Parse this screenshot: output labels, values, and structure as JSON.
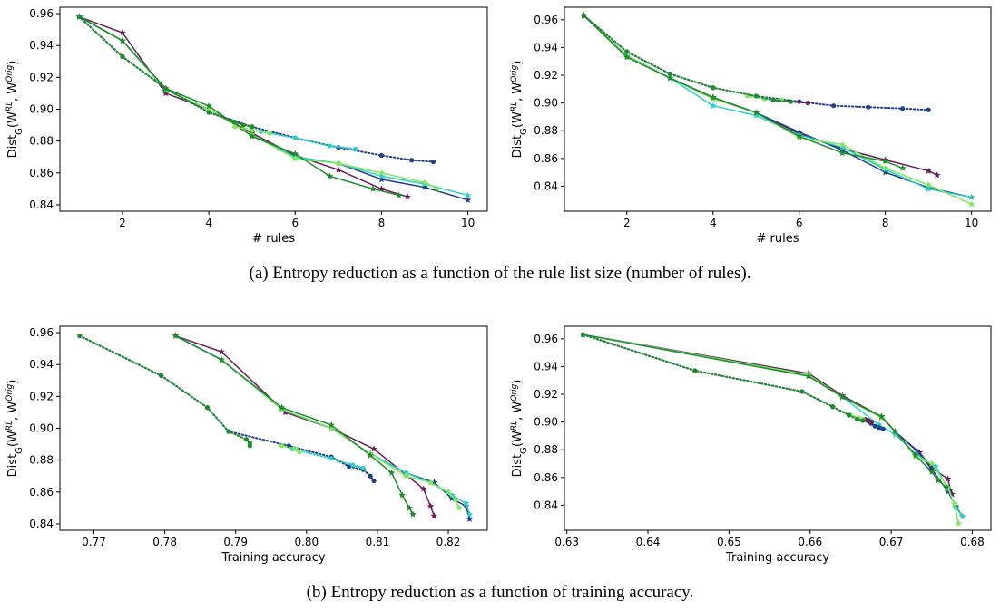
{
  "captions": {
    "a": "(a) Entropy reduction as a function of the rule list size (number of rules).",
    "b": "(b) Entropy reduction as a function of training accuracy."
  },
  "chart_data": [
    {
      "type": "line",
      "xlabel": "# rules",
      "ylabel": "Dist_G(W^RL, W^Orig)",
      "xlim": [
        0.55,
        10.45
      ],
      "ylim": [
        0.836,
        0.964
      ],
      "xticks": [
        2,
        4,
        6,
        8,
        10
      ],
      "yticks": [
        0.84,
        0.86,
        0.88,
        0.9,
        0.92,
        0.94,
        0.96
      ],
      "series": [
        {
          "color": "#6b1f57",
          "style": "solid",
          "marker": "star",
          "x": [
            1,
            2,
            3,
            4,
            5,
            6,
            7,
            8,
            8.6
          ],
          "y": [
            0.958,
            0.948,
            0.91,
            0.9,
            0.885,
            0.871,
            0.862,
            0.85,
            0.845
          ]
        },
        {
          "color": "#1f3f8e",
          "style": "solid",
          "marker": "star",
          "x": [
            1,
            2,
            3,
            4,
            5,
            6,
            7,
            8,
            9,
            10
          ],
          "y": [
            0.958,
            0.943,
            0.912,
            0.9,
            0.884,
            0.87,
            0.866,
            0.856,
            0.851,
            0.843
          ]
        },
        {
          "color": "#2bd0c4",
          "style": "solid",
          "marker": "star",
          "x": [
            1,
            2,
            3,
            4,
            5,
            6,
            7,
            8,
            9,
            10
          ],
          "y": [
            0.958,
            0.943,
            0.912,
            0.9,
            0.884,
            0.87,
            0.866,
            0.858,
            0.853,
            0.846
          ]
        },
        {
          "color": "#7ee85e",
          "style": "solid",
          "marker": "star",
          "x": [
            1,
            2,
            3,
            4,
            5,
            6,
            7,
            8,
            9,
            9.3
          ],
          "y": [
            0.958,
            0.943,
            0.912,
            0.9,
            0.884,
            0.869,
            0.866,
            0.86,
            0.854,
            0.85
          ]
        },
        {
          "color": "#1e8c2c",
          "style": "solid",
          "marker": "star",
          "x": [
            1,
            2,
            3,
            4,
            5,
            6,
            6.8,
            7.8,
            8.4
          ],
          "y": [
            0.958,
            0.943,
            0.913,
            0.902,
            0.883,
            0.872,
            0.858,
            0.85,
            0.846
          ]
        },
        {
          "color": "#1f3f8e",
          "style": "dotted",
          "marker": "circle",
          "x": [
            1,
            2,
            3,
            4,
            5,
            6,
            7,
            8,
            8.7,
            9.2
          ],
          "y": [
            0.958,
            0.933,
            0.913,
            0.898,
            0.889,
            0.882,
            0.876,
            0.871,
            0.868,
            0.867
          ]
        },
        {
          "color": "#2bd0c4",
          "style": "dotted",
          "marker": "circle",
          "x": [
            5.2,
            6,
            6.8,
            7.4
          ],
          "y": [
            0.886,
            0.882,
            0.877,
            0.875
          ]
        },
        {
          "color": "#7ee85e",
          "style": "dotted",
          "marker": "circle",
          "x": [
            4.6,
            5,
            5.4
          ],
          "y": [
            0.889,
            0.887,
            0.885
          ]
        },
        {
          "color": "#1e8c2c",
          "style": "dotted",
          "marker": "circle",
          "x": [
            1,
            2,
            3,
            4,
            4.6,
            4.8,
            5
          ],
          "y": [
            0.958,
            0.933,
            0.913,
            0.898,
            0.892,
            0.89,
            0.889
          ]
        }
      ]
    },
    {
      "type": "line",
      "xlabel": "# rules",
      "ylabel": "Dist_G(W^RL, W^Orig)",
      "xlim": [
        0.55,
        10.45
      ],
      "ylim": [
        0.822,
        0.969
      ],
      "xticks": [
        2,
        4,
        6,
        8,
        10
      ],
      "yticks": [
        0.84,
        0.86,
        0.88,
        0.9,
        0.92,
        0.94,
        0.96
      ],
      "series": [
        {
          "color": "#6b1f57",
          "style": "solid",
          "marker": "star",
          "x": [
            1,
            2,
            3,
            4,
            5,
            6,
            7,
            8,
            9,
            9.2
          ],
          "y": [
            0.963,
            0.934,
            0.918,
            0.904,
            0.893,
            0.878,
            0.867,
            0.859,
            0.851,
            0.848
          ]
        },
        {
          "color": "#1f3f8e",
          "style": "solid",
          "marker": "star",
          "x": [
            1,
            2,
            3,
            4,
            5,
            6,
            7,
            8,
            9,
            10
          ],
          "y": [
            0.963,
            0.934,
            0.918,
            0.904,
            0.893,
            0.879,
            0.866,
            0.85,
            0.839,
            0.832
          ]
        },
        {
          "color": "#2bd0c4",
          "style": "solid",
          "marker": "star",
          "x": [
            1,
            2,
            3,
            4,
            5,
            6,
            7,
            8,
            9,
            10
          ],
          "y": [
            0.963,
            0.934,
            0.918,
            0.898,
            0.891,
            0.877,
            0.868,
            0.852,
            0.838,
            0.832
          ]
        },
        {
          "color": "#7ee85e",
          "style": "solid",
          "marker": "star",
          "x": [
            1,
            2,
            3,
            4,
            5,
            6,
            7,
            8,
            9,
            10
          ],
          "y": [
            0.963,
            0.934,
            0.918,
            0.903,
            0.893,
            0.875,
            0.87,
            0.853,
            0.841,
            0.827
          ]
        },
        {
          "color": "#1e8c2c",
          "style": "solid",
          "marker": "star",
          "x": [
            1,
            2,
            3,
            4,
            5,
            6,
            7,
            8,
            8.4
          ],
          "y": [
            0.963,
            0.933,
            0.918,
            0.904,
            0.893,
            0.876,
            0.864,
            0.858,
            0.853
          ]
        },
        {
          "color": "#1f3f8e",
          "style": "dotted",
          "marker": "circle",
          "x": [
            1,
            2,
            3,
            4,
            5,
            6,
            6.8,
            7.6,
            8.4,
            9
          ],
          "y": [
            0.963,
            0.937,
            0.921,
            0.911,
            0.905,
            0.901,
            0.898,
            0.897,
            0.896,
            0.895
          ]
        },
        {
          "color": "#6b1f57",
          "style": "dotted",
          "marker": "circle",
          "x": [
            5.4,
            5.8,
            6.2
          ],
          "y": [
            0.902,
            0.901,
            0.9
          ]
        },
        {
          "color": "#7ee85e",
          "style": "dotted",
          "marker": "circle",
          "x": [
            4.8,
            5.2,
            5.6
          ],
          "y": [
            0.905,
            0.903,
            0.902
          ]
        },
        {
          "color": "#1e8c2c",
          "style": "dotted",
          "marker": "circle",
          "x": [
            1,
            2,
            3,
            4,
            5,
            5.4,
            5.8
          ],
          "y": [
            0.963,
            0.937,
            0.921,
            0.911,
            0.905,
            0.902,
            0.901
          ]
        }
      ]
    },
    {
      "type": "line",
      "xlabel": "Training accuracy",
      "ylabel": "Dist_G(W^RL, W^Orig)",
      "xlim": [
        0.7652,
        0.8255
      ],
      "ylim": [
        0.836,
        0.964
      ],
      "xticks": [
        0.77,
        0.78,
        0.79,
        0.8,
        0.81,
        0.82
      ],
      "yticks": [
        0.84,
        0.86,
        0.88,
        0.9,
        0.92,
        0.94,
        0.96
      ],
      "series": [
        {
          "color": "#6b1f57",
          "style": "solid",
          "marker": "star",
          "x": [
            0.7815,
            0.788,
            0.797,
            0.8035,
            0.8095,
            0.8165,
            0.8175,
            0.818
          ],
          "y": [
            0.958,
            0.948,
            0.91,
            0.9,
            0.887,
            0.862,
            0.851,
            0.845
          ]
        },
        {
          "color": "#1f3f8e",
          "style": "solid",
          "marker": "star",
          "x": [
            0.7815,
            0.788,
            0.7965,
            0.8035,
            0.809,
            0.814,
            0.818,
            0.8205,
            0.8225,
            0.823
          ],
          "y": [
            0.958,
            0.943,
            0.912,
            0.9,
            0.884,
            0.872,
            0.866,
            0.856,
            0.851,
            0.843
          ]
        },
        {
          "color": "#2bd0c4",
          "style": "solid",
          "marker": "star",
          "x": [
            0.7815,
            0.788,
            0.7965,
            0.8035,
            0.809,
            0.814,
            0.8175,
            0.8205,
            0.8225,
            0.823
          ],
          "y": [
            0.958,
            0.943,
            0.912,
            0.9,
            0.884,
            0.872,
            0.866,
            0.858,
            0.853,
            0.846
          ]
        },
        {
          "color": "#7ee85e",
          "style": "solid",
          "marker": "star",
          "x": [
            0.7815,
            0.788,
            0.7965,
            0.8035,
            0.809,
            0.814,
            0.8175,
            0.82,
            0.821,
            0.8215
          ],
          "y": [
            0.958,
            0.943,
            0.912,
            0.9,
            0.884,
            0.87,
            0.866,
            0.86,
            0.855,
            0.85
          ]
        },
        {
          "color": "#1e8c2c",
          "style": "solid",
          "marker": "star",
          "x": [
            0.7815,
            0.788,
            0.7965,
            0.8035,
            0.809,
            0.812,
            0.8135,
            0.8145,
            0.815
          ],
          "y": [
            0.958,
            0.943,
            0.913,
            0.902,
            0.883,
            0.872,
            0.858,
            0.85,
            0.846
          ]
        },
        {
          "color": "#1f3f8e",
          "style": "dotted",
          "marker": "circle",
          "x": [
            0.768,
            0.7795,
            0.786,
            0.789,
            0.7975,
            0.8035,
            0.806,
            0.808,
            0.809,
            0.8095
          ],
          "y": [
            0.958,
            0.933,
            0.913,
            0.898,
            0.889,
            0.882,
            0.876,
            0.874,
            0.87,
            0.867
          ]
        },
        {
          "color": "#2bd0c4",
          "style": "dotted",
          "marker": "circle",
          "x": [
            0.798,
            0.8035,
            0.8065,
            0.808
          ],
          "y": [
            0.887,
            0.881,
            0.877,
            0.875
          ]
        },
        {
          "color": "#7ee85e",
          "style": "dotted",
          "marker": "circle",
          "x": [
            0.7965,
            0.7985,
            0.799
          ],
          "y": [
            0.889,
            0.887,
            0.885
          ]
        },
        {
          "color": "#1e8c2c",
          "style": "dotted",
          "marker": "circle",
          "x": [
            0.768,
            0.7795,
            0.786,
            0.789,
            0.7915,
            0.792,
            0.792
          ],
          "y": [
            0.958,
            0.933,
            0.913,
            0.898,
            0.893,
            0.891,
            0.889
          ]
        }
      ]
    },
    {
      "type": "line",
      "xlabel": "Training accuracy",
      "ylabel": "Dist_G(W^RL, W^Orig)",
      "xlim": [
        0.6297,
        0.6823
      ],
      "ylim": [
        0.822,
        0.969
      ],
      "xticks": [
        0.63,
        0.64,
        0.65,
        0.66,
        0.67,
        0.68
      ],
      "yticks": [
        0.84,
        0.86,
        0.88,
        0.9,
        0.92,
        0.94,
        0.96
      ],
      "series": [
        {
          "color": "#6b1f57",
          "style": "solid",
          "marker": "star",
          "x": [
            0.632,
            0.6598,
            0.664,
            0.6688,
            0.6705,
            0.6735,
            0.675,
            0.677,
            0.6773,
            0.6775
          ],
          "y": [
            0.963,
            0.935,
            0.919,
            0.904,
            0.893,
            0.878,
            0.867,
            0.859,
            0.851,
            0.848
          ]
        },
        {
          "color": "#1f3f8e",
          "style": "solid",
          "marker": "star",
          "x": [
            0.632,
            0.6598,
            0.664,
            0.6688,
            0.6705,
            0.6732,
            0.675,
            0.677,
            0.678,
            0.6788
          ],
          "y": [
            0.963,
            0.934,
            0.918,
            0.904,
            0.893,
            0.879,
            0.866,
            0.85,
            0.839,
            0.832
          ]
        },
        {
          "color": "#2bd0c4",
          "style": "solid",
          "marker": "star",
          "x": [
            0.632,
            0.6598,
            0.664,
            0.6685,
            0.6705,
            0.673,
            0.6755,
            0.677,
            0.678,
            0.6788
          ],
          "y": [
            0.963,
            0.934,
            0.918,
            0.898,
            0.891,
            0.877,
            0.868,
            0.852,
            0.838,
            0.832
          ]
        },
        {
          "color": "#7ee85e",
          "style": "solid",
          "marker": "star",
          "x": [
            0.632,
            0.6598,
            0.664,
            0.6688,
            0.6705,
            0.673,
            0.675,
            0.677,
            0.6778,
            0.6783
          ],
          "y": [
            0.963,
            0.934,
            0.918,
            0.903,
            0.893,
            0.875,
            0.87,
            0.853,
            0.841,
            0.827
          ]
        },
        {
          "color": "#1e8c2c",
          "style": "solid",
          "marker": "star",
          "x": [
            0.632,
            0.6598,
            0.664,
            0.6688,
            0.6705,
            0.673,
            0.675,
            0.6758,
            0.6768
          ],
          "y": [
            0.963,
            0.933,
            0.918,
            0.904,
            0.893,
            0.876,
            0.864,
            0.858,
            0.853
          ]
        },
        {
          "color": "#1f3f8e",
          "style": "dotted",
          "marker": "circle",
          "x": [
            0.632,
            0.6458,
            0.659,
            0.6628,
            0.6648,
            0.6665,
            0.6675,
            0.668,
            0.6685,
            0.669
          ],
          "y": [
            0.963,
            0.937,
            0.922,
            0.911,
            0.905,
            0.901,
            0.899,
            0.897,
            0.896,
            0.895
          ]
        },
        {
          "color": "#6b1f57",
          "style": "dotted",
          "marker": "circle",
          "x": [
            0.6668,
            0.6672,
            0.6676
          ],
          "y": [
            0.902,
            0.901,
            0.9
          ]
        },
        {
          "color": "#7ee85e",
          "style": "dotted",
          "marker": "circle",
          "x": [
            0.665,
            0.666,
            0.6665
          ],
          "y": [
            0.905,
            0.903,
            0.902
          ]
        },
        {
          "color": "#1e8c2c",
          "style": "dotted",
          "marker": "circle",
          "x": [
            0.632,
            0.6458,
            0.659,
            0.6628,
            0.6648,
            0.6658,
            0.6665
          ],
          "y": [
            0.963,
            0.937,
            0.922,
            0.911,
            0.905,
            0.902,
            0.901
          ]
        }
      ]
    }
  ]
}
